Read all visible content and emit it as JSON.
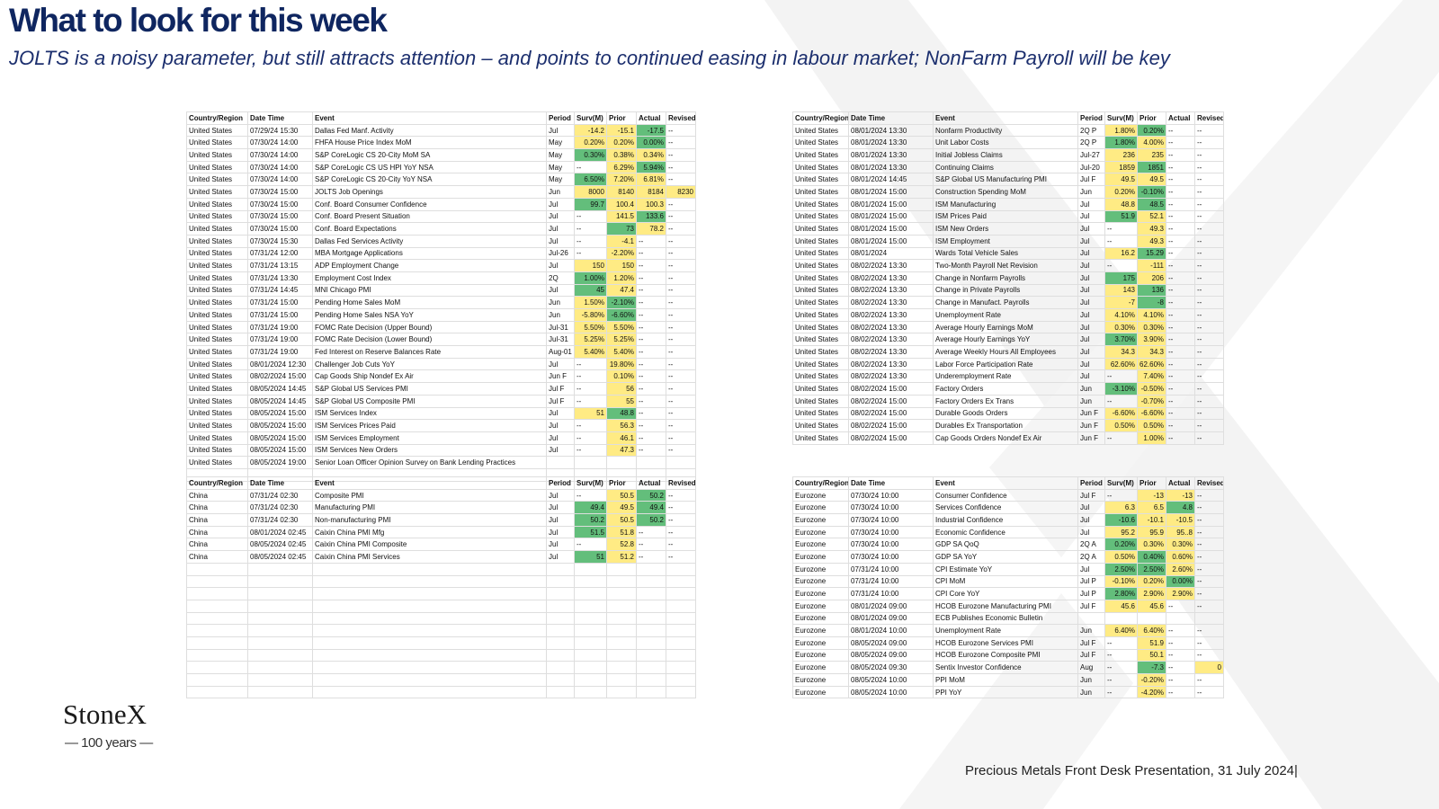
{
  "header": {
    "title": "What to look for this week",
    "subtitle": "JOLTS is a noisy parameter, but still attracts attention – and points to continued easing in labour market; NonFarm Payroll will be key"
  },
  "columns": [
    "Country/Region",
    "Date Time",
    "Event",
    "Period",
    "Surv(M)",
    "Prior",
    "Actual",
    "Revised"
  ],
  "tables": [
    {
      "rows": [
        [
          "United States",
          "07/29/24 15:30",
          "Dallas Fed Manf. Activity",
          "Jul",
          "-14.2",
          "-15.1",
          "-17.5",
          "--"
        ],
        [
          "United States",
          "07/30/24 14:00",
          "FHFA House Price Index MoM",
          "May",
          "0.20%",
          "0.20%",
          "0.00%",
          "--"
        ],
        [
          "United States",
          "07/30/24 14:00",
          "S&P CoreLogic CS 20-City MoM SA",
          "May",
          "0.30%",
          "0.38%",
          "0.34%",
          "--"
        ],
        [
          "United States",
          "07/30/24 14:00",
          "S&P CoreLogic CS US HPI YoY NSA",
          "May",
          "--",
          "6.29%",
          "5.94%",
          "--"
        ],
        [
          "United States",
          "07/30/24 14:00",
          "S&P CoreLogic CS 20-City YoY NSA",
          "May",
          "6.50%",
          "7.20%",
          "6.81%",
          "--"
        ],
        [
          "United States",
          "07/30/24 15:00",
          "JOLTS Job Openings",
          "Jun",
          "8000",
          "8140",
          "8184",
          "8230"
        ],
        [
          "United States",
          "07/30/24 15:00",
          "Conf. Board Consumer Confidence",
          "Jul",
          "99.7",
          "100.4",
          "100.3",
          "--"
        ],
        [
          "United States",
          "07/30/24 15:00",
          "Conf. Board Present Situation",
          "Jul",
          "--",
          "141.5",
          "133.6",
          "--"
        ],
        [
          "United States",
          "07/30/24 15:00",
          "Conf. Board Expectations",
          "Jul",
          "--",
          "73",
          "78.2",
          "--"
        ],
        [
          "United States",
          "07/30/24 15:30",
          "Dallas Fed Services Activity",
          "Jul",
          "--",
          "-4.1",
          "--",
          "--"
        ],
        [
          "United States",
          "07/31/24 12:00",
          "MBA Mortgage Applications",
          "Jul-26",
          "--",
          "-2.20%",
          "--",
          "--"
        ],
        [
          "United States",
          "07/31/24 13:15",
          "ADP Employment Change",
          "Jul",
          "150",
          "150",
          "--",
          "--"
        ],
        [
          "United States",
          "07/31/24 13:30",
          "Employment Cost Index",
          "2Q",
          "1.00%",
          "1.20%",
          "--",
          "--"
        ],
        [
          "United States",
          "07/31/24 14:45",
          "MNI Chicago PMI",
          "Jul",
          "45",
          "47.4",
          "--",
          "--"
        ],
        [
          "United States",
          "07/31/24 15:00",
          "Pending Home Sales MoM",
          "Jun",
          "1.50%",
          "-2.10%",
          "--",
          "--"
        ],
        [
          "United States",
          "07/31/24 15:00",
          "Pending Home Sales NSA YoY",
          "Jun",
          "-5.80%",
          "-6.60%",
          "--",
          "--"
        ],
        [
          "United States",
          "07/31/24 19:00",
          "FOMC Rate Decision (Upper Bound)",
          "Jul-31",
          "5.50%",
          "5.50%",
          "--",
          "--"
        ],
        [
          "United States",
          "07/31/24 19:00",
          "FOMC Rate Decision (Lower Bound)",
          "Jul-31",
          "5.25%",
          "5.25%",
          "--",
          "--"
        ],
        [
          "United States",
          "07/31/24 19:00",
          "Fed Interest on Reserve Balances Rate",
          "Aug-01",
          "5.40%",
          "5.40%",
          "--",
          "--"
        ],
        [
          "United States",
          "08/01/2024 12:30",
          "Challenger Job Cuts YoY",
          "Jul",
          "--",
          "19.80%",
          "--",
          "--"
        ],
        [
          "United States",
          "08/02/2024 15:00",
          "Cap Goods Ship Nondef Ex Air",
          "Jun F",
          "--",
          "0.10%",
          "--",
          "--"
        ],
        [
          "United States",
          "08/05/2024 14:45",
          "S&P Global US Services PMI",
          "Jul F",
          "--",
          "56",
          "--",
          "--"
        ],
        [
          "United States",
          "08/05/2024 14:45",
          "S&P Global US Composite PMI",
          "Jul F",
          "--",
          "55",
          "--",
          "--"
        ],
        [
          "United States",
          "08/05/2024 15:00",
          "ISM Services Index",
          "Jul",
          "51",
          "48.8",
          "--",
          "--"
        ],
        [
          "United States",
          "08/05/2024 15:00",
          "ISM Services Prices Paid",
          "Jul",
          "--",
          "56.3",
          "--",
          "--"
        ],
        [
          "United States",
          "08/05/2024 15:00",
          "ISM Services Employment",
          "Jul",
          "--",
          "46.1",
          "--",
          "--"
        ],
        [
          "United States",
          "08/05/2024 15:00",
          "ISM Services New Orders",
          "Jul",
          "--",
          "47.3",
          "--",
          "--"
        ],
        [
          "United States",
          "08/05/2024 19:00",
          "Senior Loan Officer Opinion Survey on Bank Lending Practices",
          null,
          null,
          null,
          null,
          null
        ]
      ]
    },
    {
      "rows": [
        [
          "United States",
          "08/01/2024 13:30",
          "Nonfarm Productivity",
          "2Q P",
          "1.80%",
          "0.20%",
          "--",
          "--"
        ],
        [
          "United States",
          "08/01/2024 13:30",
          "Unit Labor Costs",
          "2Q P",
          "1.80%",
          "4.00%",
          "--",
          "--"
        ],
        [
          "United States",
          "08/01/2024 13:30",
          "Initial Jobless Claims",
          "Jul-27",
          "236",
          "235",
          "--",
          "--"
        ],
        [
          "United States",
          "08/01/2024 13:30",
          "Continuing Claims",
          "Jul-20",
          "1859",
          "1851",
          "--",
          "--"
        ],
        [
          "United States",
          "08/01/2024 14:45",
          "S&P Global US Manufacturing PMI",
          "Jul F",
          "49.5",
          "49.5",
          "--",
          "--"
        ],
        [
          "United States",
          "08/01/2024 15:00",
          "Construction Spending MoM",
          "Jun",
          "0.20%",
          "-0.10%",
          "--",
          "--"
        ],
        [
          "United States",
          "08/01/2024 15:00",
          "ISM Manufacturing",
          "Jul",
          "48.8",
          "48.5",
          "--",
          "--"
        ],
        [
          "United States",
          "08/01/2024 15:00",
          "ISM Prices Paid",
          "Jul",
          "51.9",
          "52.1",
          "--",
          "--"
        ],
        [
          "United States",
          "08/01/2024 15:00",
          "ISM New Orders",
          "Jul",
          "--",
          "49.3",
          "--",
          "--"
        ],
        [
          "United States",
          "08/01/2024 15:00",
          "ISM Employment",
          "Jul",
          "--",
          "49.3",
          "--",
          "--"
        ],
        [
          "United States",
          "08/01/2024",
          "Wards Total Vehicle Sales",
          "Jul",
          "16.2",
          "15.29",
          "--",
          "--"
        ],
        [
          "United States",
          "08/02/2024 13:30",
          "Two-Month Payroll Net Revision",
          "Jul",
          "--",
          "-111",
          "--",
          "--"
        ],
        [
          "United States",
          "08/02/2024 13:30",
          "Change in Nonfarm Payrolls",
          "Jul",
          "175",
          "206",
          "--",
          "--"
        ],
        [
          "United States",
          "08/02/2024 13:30",
          "Change in Private Payrolls",
          "Jul",
          "143",
          "136",
          "--",
          "--"
        ],
        [
          "United States",
          "08/02/2024 13:30",
          "Change in Manufact. Payrolls",
          "Jul",
          "-7",
          "-8",
          "--",
          "--"
        ],
        [
          "United States",
          "08/02/2024 13:30",
          "Unemployment Rate",
          "Jul",
          "4.10%",
          "4.10%",
          "--",
          "--"
        ],
        [
          "United States",
          "08/02/2024 13:30",
          "Average Hourly Earnings MoM",
          "Jul",
          "0.30%",
          "0.30%",
          "--",
          "--"
        ],
        [
          "United States",
          "08/02/2024 13:30",
          "Average Hourly Earnings YoY",
          "Jul",
          "3.70%",
          "3.90%",
          "--",
          "--"
        ],
        [
          "United States",
          "08/02/2024 13:30",
          "Average Weekly Hours All Employees",
          "Jul",
          "34.3",
          "34.3",
          "--",
          "--"
        ],
        [
          "United States",
          "08/02/2024 13:30",
          "Labor Force Participation Rate",
          "Jul",
          "62.60%",
          "62.60%",
          "--",
          "--"
        ],
        [
          "United States",
          "08/02/2024 13:30",
          "Underemployment Rate",
          "Jul",
          "--",
          "7.40%",
          "--",
          "--"
        ],
        [
          "United States",
          "08/02/2024 15:00",
          "Factory Orders",
          "Jun",
          "-3.10%",
          "-0.50%",
          "--",
          "--"
        ],
        [
          "United States",
          "08/02/2024 15:00",
          "Factory Orders Ex Trans",
          "Jun",
          "--",
          "-0.70%",
          "--",
          "--"
        ],
        [
          "United States",
          "08/02/2024 15:00",
          "Durable Goods Orders",
          "Jun F",
          "-6.60%",
          "-6.60%",
          "--",
          "--"
        ],
        [
          "United States",
          "08/02/2024 15:00",
          "Durables Ex Transportation",
          "Jun F",
          "0.50%",
          "0.50%",
          "--",
          "--"
        ],
        [
          "United States",
          "08/02/2024 15:00",
          "Cap Goods Orders Nondef Ex Air",
          "Jun F",
          "--",
          "1.00%",
          "--",
          "--"
        ]
      ]
    },
    {
      "rows": [
        [
          "China",
          "07/31/24 02:30",
          "Composite PMI",
          "Jul",
          "--",
          "50.5",
          "50.2",
          "--"
        ],
        [
          "China",
          "07/31/24 02:30",
          "Manufacturing PMI",
          "Jul",
          "49.4",
          "49.5",
          "49.4",
          "--"
        ],
        [
          "China",
          "07/31/24 02:30",
          "Non-manufacturing PMI",
          "Jul",
          "50.2",
          "50.5",
          "50.2",
          "--"
        ],
        [
          "China",
          "08/01/2024 02:45",
          "Caixin China PMI Mfg",
          "Jul",
          "51.5",
          "51.8",
          "--",
          "--"
        ],
        [
          "China",
          "08/05/2024 02:45",
          "Caixin China PMI Composite",
          "Jul",
          "--",
          "52.8",
          "--",
          "--"
        ],
        [
          "China",
          "08/05/2024 02:45",
          "Caixin China PMI Services",
          "Jul",
          "51",
          "51.2",
          "--",
          "--"
        ]
      ]
    },
    {
      "rows": [
        [
          "Eurozone",
          "07/30/24 10:00",
          "Consumer Confidence",
          "Jul F",
          "--",
          "-13",
          "-13",
          "--"
        ],
        [
          "Eurozone",
          "07/30/24 10:00",
          "Services Confidence",
          "Jul",
          "6.3",
          "6.5",
          "4.8",
          "--"
        ],
        [
          "Eurozone",
          "07/30/24 10:00",
          "Industrial Confidence",
          "Jul",
          "-10.6",
          "-10.1",
          "-10.5",
          "--"
        ],
        [
          "Eurozone",
          "07/30/24 10:00",
          "Economic Confidence",
          "Jul",
          "95.2",
          "95.9",
          "95..8",
          "--"
        ],
        [
          "Eurozone",
          "07/30/24 10:00",
          "GDP SA QoQ",
          "2Q A",
          "0.20%",
          "0.30%",
          "0.30%",
          "--"
        ],
        [
          "Eurozone",
          "07/30/24 10:00",
          "GDP SA YoY",
          "2Q A",
          "0.50%",
          "0.40%",
          "0.60%",
          "--"
        ],
        [
          "Eurozone",
          "07/31/24 10:00",
          "CPI Estimate YoY",
          "Jul",
          "2.50%",
          "2.50%",
          "2.60%",
          "--"
        ],
        [
          "Eurozone",
          "07/31/24 10:00",
          "CPI MoM",
          "Jul P",
          "-0.10%",
          "0.20%",
          "0.00%",
          "--"
        ],
        [
          "Eurozone",
          "07/31/24 10:00",
          "CPI Core YoY",
          "Jul P",
          "2.80%",
          "2.90%",
          "2.90%",
          "--"
        ],
        [
          "Eurozone",
          "08/01/2024 09:00",
          "HCOB Eurozone Manufacturing PMI",
          "Jul F",
          "45.6",
          "45.6",
          "--",
          "--"
        ],
        [
          "Eurozone",
          "08/01/2024 09:00",
          "ECB Publishes Economic Bulletin",
          null,
          null,
          null,
          null,
          null
        ],
        [
          "Eurozone",
          "08/01/2024 10:00",
          "Unemployment Rate",
          "Jun",
          "6.40%",
          "6.40%",
          "--",
          "--"
        ],
        [
          "Eurozone",
          "08/05/2024 09:00",
          "HCOB Eurozone Services PMI",
          "Jul F",
          "--",
          "51.9",
          "--",
          "--"
        ],
        [
          "Eurozone",
          "08/05/2024 09:00",
          "HCOB Eurozone Composite PMI",
          "Jul F",
          "--",
          "50.1",
          "--",
          "--"
        ],
        [
          "Eurozone",
          "08/05/2024 09:30",
          "Sentix Investor Confidence",
          "Aug",
          "--",
          "-7.3",
          "--",
          "0"
        ],
        [
          "Eurozone",
          "08/05/2024 10:00",
          "PPI MoM",
          "Jun",
          "--",
          "-0.20%",
          "--",
          "--"
        ],
        [
          "Eurozone",
          "08/05/2024 10:00",
          "PPI YoY",
          "Jun",
          "--",
          "-4.20%",
          "--",
          "--"
        ]
      ]
    }
  ],
  "logo": {
    "name": "StoneX",
    "tagline": "100 years"
  },
  "footer": "Precious Metals Front Desk Presentation, 31 July 2024|"
}
